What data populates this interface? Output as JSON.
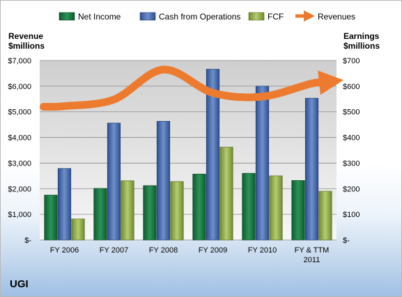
{
  "chart_data": {
    "type": "bar",
    "company": "UGI",
    "categories": [
      "FY 2006",
      "FY 2007",
      "FY 2008",
      "FY 2009",
      "FY 2010",
      "FY & TTM 2011"
    ],
    "left_axis": {
      "label_line1": "Revenue",
      "label_line2": "$millions",
      "range": [
        0,
        7000
      ],
      "ticks": [
        0,
        1000,
        2000,
        3000,
        4000,
        5000,
        6000,
        7000
      ],
      "tick_labels": [
        "$-",
        "$1,000",
        "$2,000",
        "$3,000",
        "$4,000",
        "$5,000",
        "$6,000",
        "$7,000"
      ]
    },
    "right_axis": {
      "label_line1": "Earnings",
      "label_line2": "$millions",
      "range": [
        0,
        700
      ],
      "ticks": [
        0,
        100,
        200,
        300,
        400,
        500,
        600,
        700
      ],
      "tick_labels": [
        "$-",
        "$100",
        "$200",
        "$300",
        "$400",
        "$500",
        "$600",
        "$700"
      ]
    },
    "series": [
      {
        "name": "Net Income",
        "type": "bar",
        "axis": "right",
        "color": "#1f7a45",
        "values": [
          175,
          201,
          212,
          257,
          260,
          232
        ]
      },
      {
        "name": "Cash from Operations",
        "type": "bar",
        "axis": "right",
        "color": "#4f73b6",
        "values": [
          279,
          456,
          463,
          666,
          600,
          553
        ]
      },
      {
        "name": "FCF",
        "type": "bar",
        "axis": "right",
        "color": "#9bb552",
        "values": [
          82,
          231,
          228,
          362,
          250,
          190
        ]
      },
      {
        "name": "Revenues",
        "type": "line",
        "axis": "left",
        "color": "#ec7b2f",
        "values": [
          5221,
          5477,
          6648,
          5738,
          5591,
          6105
        ]
      }
    ],
    "grid": true,
    "legend": "top"
  }
}
